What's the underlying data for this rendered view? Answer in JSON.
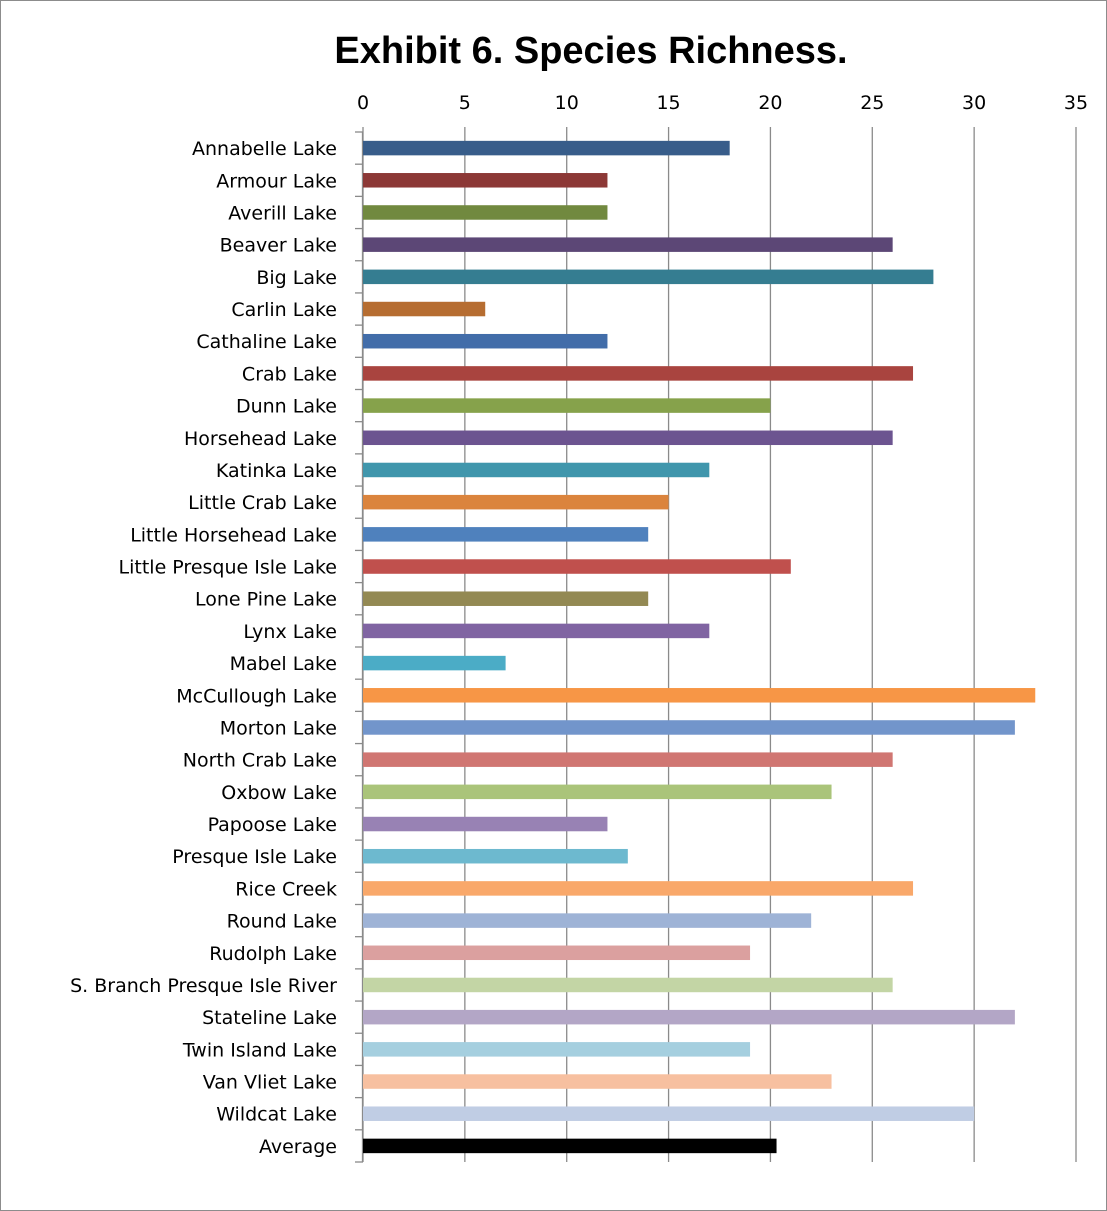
{
  "chart_data": {
    "type": "bar",
    "orientation": "horizontal",
    "title": "Exhibit 6. Species Richness.",
    "xlim": [
      0,
      35
    ],
    "x_ticks": [
      0,
      5,
      10,
      15,
      20,
      25,
      30,
      35
    ],
    "x_axis_position": "top",
    "grid": true,
    "legend": "none",
    "categories": [
      "Annabelle Lake",
      "Armour Lake",
      "Averill Lake",
      "Beaver Lake",
      "Big Lake",
      "Carlin Lake",
      "Cathaline Lake",
      "Crab Lake",
      "Dunn Lake",
      "Horsehead Lake",
      "Katinka Lake",
      "Little Crab Lake",
      "Little Horsehead Lake",
      "Little Presque Isle Lake",
      "Lone Pine Lake",
      "Lynx Lake",
      "Mabel Lake",
      "McCullough Lake",
      "Morton Lake",
      "North Crab Lake",
      "Oxbow Lake",
      "Papoose Lake",
      "Presque Isle Lake",
      "Rice Creek",
      "Round Lake",
      "Rudolph Lake",
      "S. Branch Presque Isle River",
      "Stateline Lake",
      "Twin Island Lake",
      "Van Vliet Lake",
      "Wildcat Lake",
      "Average"
    ],
    "values": [
      18,
      12,
      12,
      26,
      28,
      6,
      12,
      27,
      20,
      26,
      17,
      15,
      14,
      21,
      14,
      17,
      7,
      33,
      32,
      26,
      23,
      12,
      13,
      27,
      22,
      19,
      26,
      32,
      19,
      23,
      30,
      20.3
    ],
    "colors": [
      "#385d8a",
      "#8c3836",
      "#71893f",
      "#5c4776",
      "#357d91",
      "#b66d31",
      "#426da9",
      "#a9443f",
      "#86a24b",
      "#6c5490",
      "#4096ac",
      "#db843d",
      "#4f81bd",
      "#c0504d",
      "#938953",
      "#8064a2",
      "#4bacc6",
      "#f79646",
      "#7295cb",
      "#d07672",
      "#aac47a",
      "#9882b4",
      "#6db9cf",
      "#f9a86a",
      "#9eb3d6",
      "#dba09f",
      "#c3d5a5",
      "#b3a6c6",
      "#a5cfdf",
      "#f7c0a0",
      "#c0cde4",
      "#000000"
    ]
  }
}
